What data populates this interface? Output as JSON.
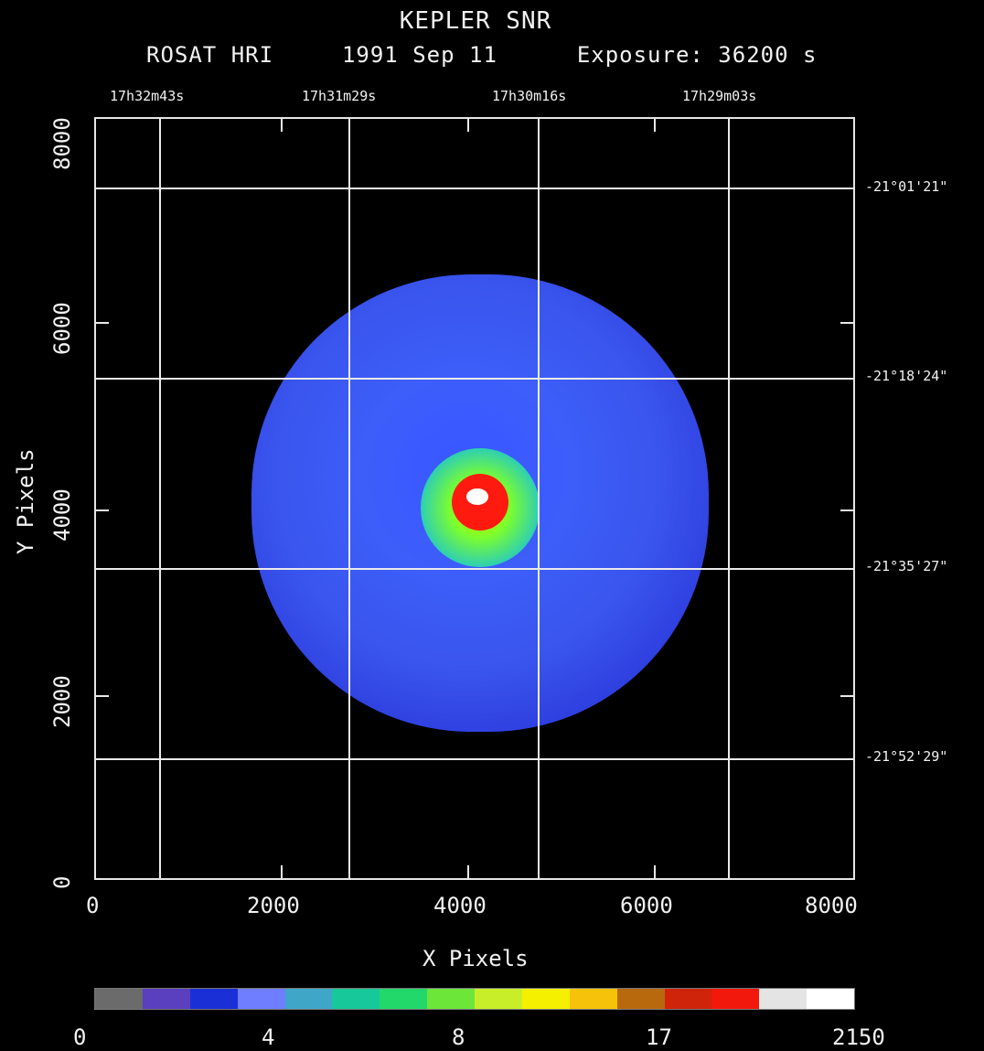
{
  "title": "KEPLER SNR",
  "subtitle": {
    "instrument": "ROSAT HRI",
    "date": "1991 Sep 11",
    "exposure": "Exposure: 36200 s"
  },
  "ra_labels": [
    "17h32m43s",
    "17h31m29s",
    "17h30m16s",
    "17h29m03s"
  ],
  "dec_labels": [
    "-21°01'21\"",
    "-21°18'24\"",
    "-21°35'27\"",
    "-21°52'29\""
  ],
  "x_ticks": [
    "0",
    "2000",
    "4000",
    "6000",
    "8000"
  ],
  "y_ticks": [
    "0",
    "2000",
    "4000",
    "6000",
    "8000"
  ],
  "xlabel": "X Pixels",
  "ylabel": "Y Pixels",
  "colorbar": {
    "labels": [
      "0",
      "4",
      "8",
      "17",
      "2150"
    ],
    "colors": [
      "#6b6b6b",
      "#5a3fbf",
      "#1a2fd6",
      "#6f7dff",
      "#3fa6c8",
      "#17c99a",
      "#22d86a",
      "#6de63a",
      "#c8ee2a",
      "#f4f000",
      "#f6c20a",
      "#b8690e",
      "#d0240a",
      "#f2180c",
      "#e4e4e4",
      "#ffffff"
    ]
  }
}
